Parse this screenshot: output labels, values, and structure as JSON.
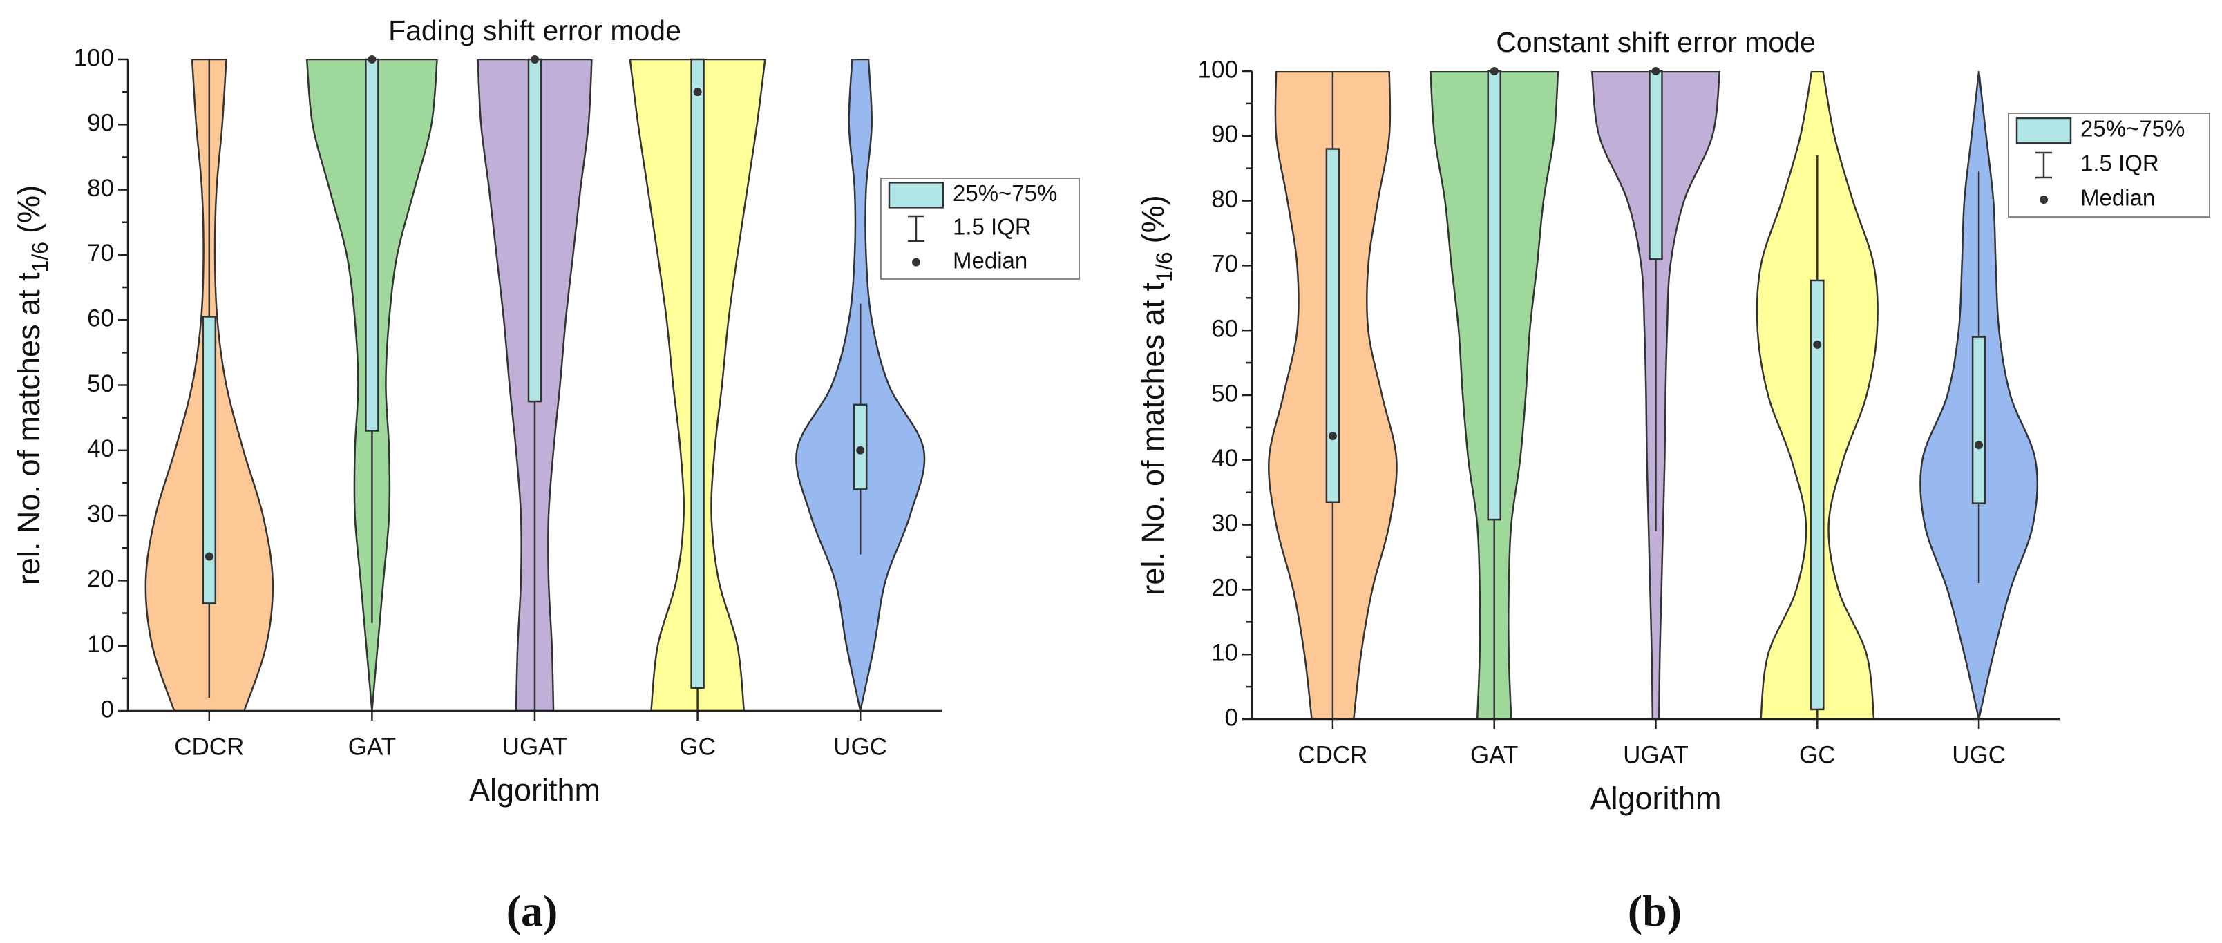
{
  "chart_data": [
    {
      "type": "violin",
      "title": "Fading shift error mode",
      "xlabel": "Algorithm",
      "ylabel": "rel. No. of matches at t",
      "ylabel_sub": "1/6",
      "ylabel_end": "(%)",
      "categories": [
        "CDCR",
        "GAT",
        "UGAT",
        "GC",
        "UGC"
      ],
      "colors": [
        "#fdc895",
        "#9fd89b",
        "#c0b0d8",
        "#ffff99",
        "#98b8f0"
      ],
      "box_color": "#b0e6e6",
      "boxes": [
        {
          "q1": 16.5,
          "median": 23.7,
          "q3": 60.5,
          "low": 2,
          "high": 100
        },
        {
          "q1": 43,
          "median": 100,
          "q3": 100,
          "low": 13.5,
          "high": 100
        },
        {
          "q1": 47.5,
          "median": 100,
          "q3": 100,
          "low": 0,
          "high": 100
        },
        {
          "q1": 3.5,
          "median": 95,
          "q3": 100,
          "low": 0,
          "high": 100
        },
        {
          "q1": 34,
          "median": 40,
          "q3": 47,
          "low": 24,
          "high": 62.5
        }
      ],
      "density_y": [
        0,
        10,
        20,
        30,
        40,
        50,
        60,
        70,
        80,
        90,
        100
      ],
      "density": [
        [
          0.43,
          0.7,
          0.78,
          0.66,
          0.42,
          0.21,
          0.1,
          0.07,
          0.09,
          0.16,
          0.21
        ],
        [
          0,
          0.07,
          0.14,
          0.21,
          0.21,
          0.17,
          0.21,
          0.31,
          0.52,
          0.73,
          0.8
        ],
        [
          0.23,
          0.21,
          0.17,
          0.17,
          0.23,
          0.31,
          0.38,
          0.47,
          0.56,
          0.66,
          0.7
        ],
        [
          0.57,
          0.49,
          0.26,
          0.17,
          0.21,
          0.3,
          0.38,
          0.49,
          0.61,
          0.73,
          0.83
        ],
        [
          0,
          0.17,
          0.31,
          0.61,
          0.78,
          0.35,
          0.14,
          0.07,
          0.07,
          0.14,
          0.1
        ]
      ],
      "ylim": [
        0,
        100
      ],
      "yticks": [
        0,
        10,
        20,
        30,
        40,
        50,
        60,
        70,
        80,
        90,
        100
      ],
      "legend": [
        "25%~75%",
        "1.5 IQR",
        "Median"
      ],
      "panel_label": "(a)"
    },
    {
      "type": "violin",
      "title": "Constant shift error mode",
      "xlabel": "Algorithm",
      "ylabel": "rel. No. of matches at t",
      "ylabel_sub": "1/6",
      "ylabel_end": "(%)",
      "categories": [
        "CDCR",
        "GAT",
        "UGAT",
        "GC",
        "UGC"
      ],
      "colors": [
        "#fdc895",
        "#9fd89b",
        "#c0b0d8",
        "#ffff99",
        "#98b8f0"
      ],
      "box_color": "#b0e6e6",
      "boxes": [
        {
          "q1": 33.5,
          "median": 43.7,
          "q3": 88,
          "low": 0,
          "high": 100
        },
        {
          "q1": 30.8,
          "median": 100,
          "q3": 100,
          "low": 0,
          "high": 100
        },
        {
          "q1": 71,
          "median": 100,
          "q3": 100,
          "low": 29,
          "high": 100
        },
        {
          "q1": 1.5,
          "median": 57.8,
          "q3": 67.7,
          "low": 0,
          "high": 87
        },
        {
          "q1": 33.3,
          "median": 42.3,
          "q3": 59,
          "low": 21,
          "high": 84.5
        }
      ],
      "density_y": [
        0,
        10,
        20,
        30,
        40,
        50,
        60,
        70,
        80,
        90,
        100
      ],
      "density": [
        [
          0.26,
          0.35,
          0.49,
          0.7,
          0.79,
          0.61,
          0.44,
          0.44,
          0.56,
          0.7,
          0.7
        ],
        [
          0.21,
          0.18,
          0.18,
          0.21,
          0.32,
          0.39,
          0.44,
          0.53,
          0.61,
          0.74,
          0.79
        ],
        [
          0.04,
          0.05,
          0.07,
          0.09,
          0.11,
          0.12,
          0.14,
          0.18,
          0.35,
          0.7,
          0.79
        ],
        [
          0.7,
          0.61,
          0.26,
          0.14,
          0.32,
          0.61,
          0.74,
          0.7,
          0.44,
          0.21,
          0.07
        ],
        [
          0,
          0.18,
          0.39,
          0.67,
          0.7,
          0.39,
          0.25,
          0.21,
          0.18,
          0.09,
          0
        ]
      ],
      "ylim": [
        0,
        100
      ],
      "yticks": [
        0,
        10,
        20,
        30,
        40,
        50,
        60,
        70,
        80,
        90,
        100
      ],
      "legend": [
        "25%~75%",
        "1.5 IQR",
        "Median"
      ],
      "panel_label": "(b)"
    }
  ]
}
